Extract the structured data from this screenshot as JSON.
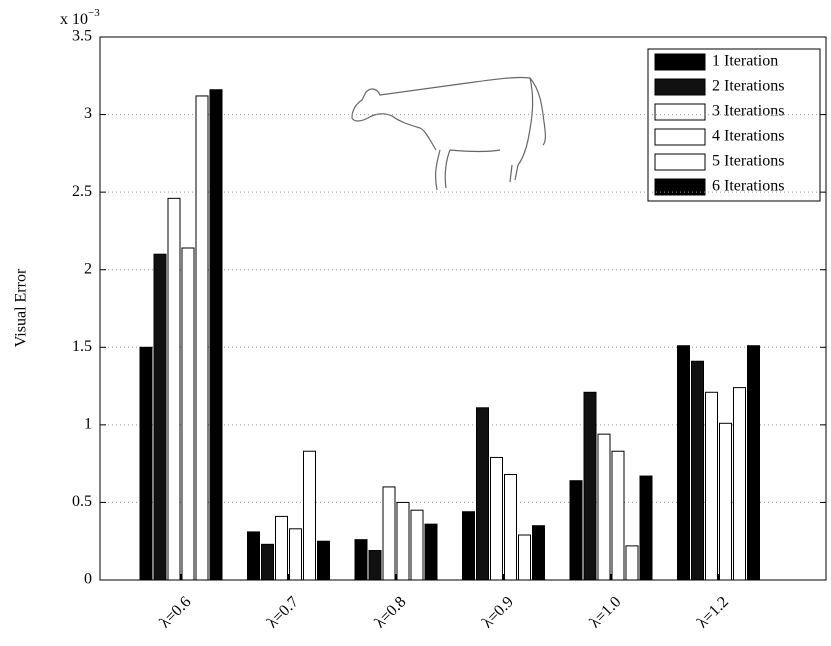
{
  "chart_data": {
    "type": "bar",
    "y_label": "Visual Error",
    "y_multiplier": "x 10",
    "y_multiplier_exponent": "−3",
    "categories": [
      "λ=0.6",
      "λ=0.7",
      "λ=0.8",
      "λ=0.9",
      "λ=1.0",
      "λ=1.2"
    ],
    "series": [
      {
        "name": "1 Iteration",
        "color": "#000000",
        "values": [
          1.5,
          0.31,
          0.26,
          0.44,
          0.64,
          1.51
        ]
      },
      {
        "name": "2 Iterations",
        "color": "#111111",
        "values": [
          2.1,
          0.23,
          0.19,
          1.11,
          1.21,
          1.41
        ]
      },
      {
        "name": "3 Iterations",
        "color": "#ffffff",
        "values": [
          2.46,
          0.41,
          0.6,
          0.79,
          0.94,
          1.21
        ]
      },
      {
        "name": "4 Iterations",
        "color": "#ffffff",
        "values": [
          2.14,
          0.33,
          0.5,
          0.68,
          0.83,
          1.01
        ]
      },
      {
        "name": "5 Iterations",
        "color": "#ffffff",
        "values": [
          3.12,
          0.83,
          0.45,
          0.29,
          0.22,
          1.24
        ]
      },
      {
        "name": "6 Iterations",
        "color": "#000000",
        "values": [
          3.16,
          0.25,
          0.36,
          0.35,
          0.67,
          1.51
        ]
      }
    ],
    "ylim": [
      0,
      3.5
    ],
    "yticks": [
      0,
      0.5,
      1,
      1.5,
      2,
      2.5,
      3,
      3.5
    ],
    "grid": true,
    "legend": "top-right"
  }
}
